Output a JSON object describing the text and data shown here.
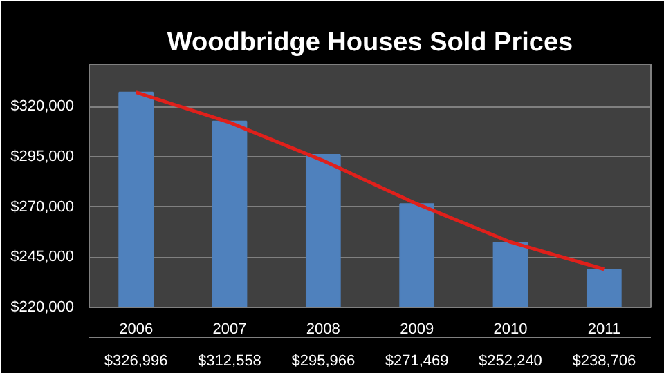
{
  "chart_data": {
    "type": "bar",
    "title": "Woodbridge Houses Sold Prices",
    "categories": [
      "2006",
      "2007",
      "2008",
      "2009",
      "2010",
      "2011"
    ],
    "series": [
      {
        "color": "#4f81bd",
        "values": [
          326996,
          312558,
          295966,
          271469,
          252240,
          238706
        ],
        "value_labels": [
          "$326,996",
          "$312,558",
          "$295,966",
          "$271,469",
          "$252,240",
          "$238,706"
        ]
      },
      {
        "type": "line",
        "color": "#e0201b",
        "values": [
          327000,
          312000,
          293000,
          271500,
          252500,
          239000
        ]
      }
    ],
    "ylim": [
      220000,
      341000
    ],
    "yticks": [
      {
        "value": 220000,
        "label": "$220,000"
      },
      {
        "value": 245000,
        "label": "$245,000"
      },
      {
        "value": 270000,
        "label": "$270,000"
      },
      {
        "value": 295000,
        "label": "$295,000"
      },
      {
        "value": 320000,
        "label": "$320,000"
      }
    ],
    "grid": "y"
  }
}
